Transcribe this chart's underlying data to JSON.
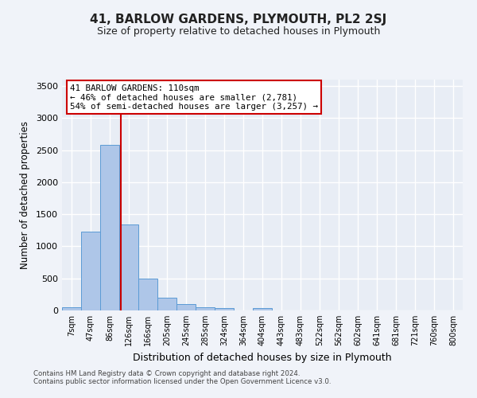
{
  "title": "41, BARLOW GARDENS, PLYMOUTH, PL2 2SJ",
  "subtitle": "Size of property relative to detached houses in Plymouth",
  "xlabel": "Distribution of detached houses by size in Plymouth",
  "ylabel": "Number of detached properties",
  "bar_color": "#aec6e8",
  "bar_edge_color": "#5b9bd5",
  "background_color": "#e8edf5",
  "grid_color": "#ffffff",
  "fig_bg_color": "#f0f3f9",
  "categories": [
    "7sqm",
    "47sqm",
    "86sqm",
    "126sqm",
    "166sqm",
    "205sqm",
    "245sqm",
    "285sqm",
    "324sqm",
    "364sqm",
    "404sqm",
    "443sqm",
    "483sqm",
    "522sqm",
    "562sqm",
    "602sqm",
    "641sqm",
    "681sqm",
    "721sqm",
    "760sqm",
    "800sqm"
  ],
  "values": [
    50,
    1230,
    2580,
    1340,
    500,
    195,
    105,
    45,
    40,
    5,
    40,
    0,
    0,
    0,
    0,
    0,
    0,
    0,
    0,
    0,
    0
  ],
  "ylim": [
    0,
    3600
  ],
  "yticks": [
    0,
    500,
    1000,
    1500,
    2000,
    2500,
    3000,
    3500
  ],
  "property_line_color": "#cc0000",
  "annotation_text": "41 BARLOW GARDENS: 110sqm\n← 46% of detached houses are smaller (2,781)\n54% of semi-detached houses are larger (3,257) →",
  "annotation_box_color": "#ffffff",
  "annotation_box_edge_color": "#cc0000",
  "footer_line1": "Contains HM Land Registry data © Crown copyright and database right 2024.",
  "footer_line2": "Contains public sector information licensed under the Open Government Licence v3.0."
}
